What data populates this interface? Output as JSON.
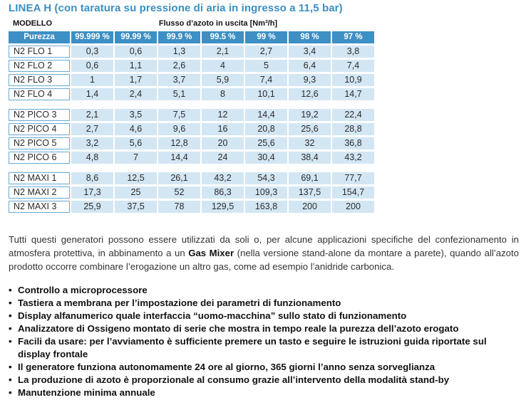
{
  "title": "LINEA H (con taratura su pressione di aria in ingresso a 11,5 bar)",
  "table": {
    "model_header": "MODELLO",
    "flow_header": "Flusso d’azoto in uscita [Nm³/h]",
    "purity_label": "Purezza",
    "purities": [
      "99.999 %",
      "99.99 %",
      "99.9 %",
      "99.5 %",
      "99 %",
      "98 %",
      "97 %"
    ],
    "groups": [
      {
        "rows": [
          {
            "model": "N2 FLO 1",
            "values": [
              "0,3",
              "0,6",
              "1,3",
              "2,1",
              "2,7",
              "3,4",
              "3,8"
            ]
          },
          {
            "model": "N2 FLO 2",
            "values": [
              "0,6",
              "1,1",
              "2,6",
              "4",
              "5",
              "6,4",
              "7,4"
            ]
          },
          {
            "model": "N2 FLO 3",
            "values": [
              "1",
              "1,7",
              "3,7",
              "5,9",
              "7,4",
              "9,3",
              "10,9"
            ]
          },
          {
            "model": "N2 FLO 4",
            "values": [
              "1,4",
              "2,4",
              "5,1",
              "8",
              "10,1",
              "12,6",
              "14,7"
            ]
          }
        ]
      },
      {
        "rows": [
          {
            "model": "N2 PICO 3",
            "values": [
              "2,1",
              "3,5",
              "7,5",
              "12",
              "14,4",
              "19,2",
              "22,4"
            ]
          },
          {
            "model": "N2 PICO 4",
            "values": [
              "2,7",
              "4,6",
              "9,6",
              "16",
              "20,8",
              "25,6",
              "28,8"
            ]
          },
          {
            "model": "N2 PICO 5",
            "values": [
              "3,2",
              "5,6",
              "12,8",
              "20",
              "25,6",
              "32",
              "36,8"
            ]
          },
          {
            "model": "N2 PICO 6",
            "values": [
              "4,8",
              "7",
              "14,4",
              "24",
              "30,4",
              "38,4",
              "43,2"
            ]
          }
        ]
      },
      {
        "rows": [
          {
            "model": "N2 MAXI 1",
            "values": [
              "8,6",
              "12,5",
              "26,1",
              "43,2",
              "54,3",
              "69,1",
              "77,7"
            ]
          },
          {
            "model": "N2 MAXI 2",
            "values": [
              "17,3",
              "25",
              "52",
              "86,3",
              "109,3",
              "137,5",
              "154,7"
            ]
          },
          {
            "model": "N2 MAXI 3",
            "values": [
              "25,9",
              "37,5",
              "78",
              "129,5",
              "163,8",
              "200",
              "200"
            ]
          }
        ]
      }
    ]
  },
  "paragraph": {
    "before": "Tutti questi generatori possono essere utilizzati da soli o, per alcune applicazioni specifiche del confezionamento in atmosfera protettiva, in abbinamento a un ",
    "bold": "Gas Mixer",
    "after": " (nella versione stand-alone da montare a parete), quando all’azoto prodotto occorre combinare l’erogazione un altro gas, come ad esempio l’anidride carbonica."
  },
  "bullet_symbol": "•",
  "bullets": [
    "Controllo a microprocessore",
    "Tastiera a membrana per l’impostazione dei parametri di funzionamento",
    "Display alfanumerico quale interfaccia “uomo-macchina” sullo stato di funzionamento",
    "Analizzatore di Ossigeno montato di serie che mostra in tempo reale la purezza dell’azoto erogato",
    "Facili da usare: per l’avviamento è sufficiente premere un tasto e seguire le istruzioni guida riportate sul display frontale",
    "Il generatore funziona autonomamente 24 ore al giorno, 365 giorni l’anno senza sorveglianza",
    "La produzione di azoto è proporzionale al consumo grazie all’intervento della modalità stand-by",
    "Manutenzione minima annuale"
  ]
}
